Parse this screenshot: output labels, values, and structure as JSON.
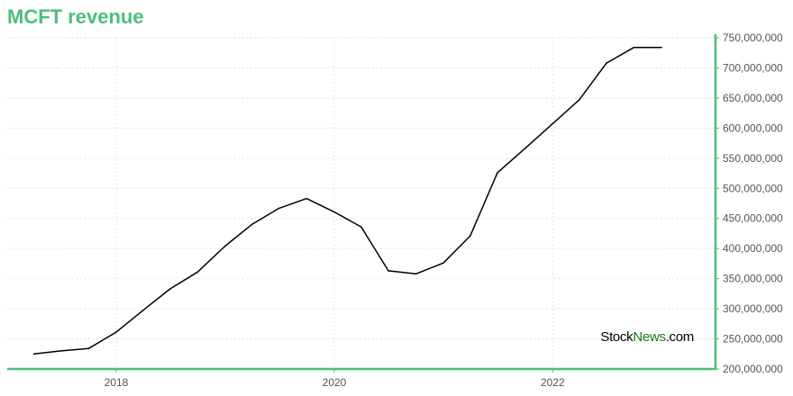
{
  "chart_title": "MCFT revenue",
  "watermark": {
    "part_a": "Stock",
    "part_b": "News",
    "part_c": ".com"
  },
  "colors": {
    "accent": "#4cbe7f",
    "line": "#000000",
    "grid": "#c9e6d6"
  },
  "chart_data": {
    "type": "line",
    "title": "MCFT revenue",
    "xlabel": "",
    "ylabel": "",
    "x_range": [
      "2017-01-01",
      "2023-06-30"
    ],
    "ylim": [
      200000000,
      750000000
    ],
    "y_ticks": [
      200000000,
      250000000,
      300000000,
      350000000,
      400000000,
      450000000,
      500000000,
      550000000,
      600000000,
      650000000,
      700000000,
      750000000
    ],
    "y_tick_labels": [
      "200,000,000",
      "250,000,000",
      "300,000,000",
      "350,000,000",
      "400,000,000",
      "450,000,000",
      "500,000,000",
      "550,000,000",
      "600,000,000",
      "650,000,000",
      "700,000,000",
      "750,000,000"
    ],
    "x_ticks": [
      "2018-01-01",
      "2020-01-01",
      "2022-01-01"
    ],
    "x_tick_labels": [
      "2018",
      "2020",
      "2022"
    ],
    "grid": true,
    "series": [
      {
        "points": [
          [
            "2017-03-31",
            225000000
          ],
          [
            "2017-06-30",
            230000000
          ],
          [
            "2017-09-30",
            234000000
          ],
          [
            "2017-12-31",
            261000000
          ],
          [
            "2018-03-31",
            297000000
          ],
          [
            "2018-06-30",
            333000000
          ],
          [
            "2018-09-30",
            361000000
          ],
          [
            "2018-12-31",
            404000000
          ],
          [
            "2019-03-31",
            440000000
          ],
          [
            "2019-06-30",
            467000000
          ],
          [
            "2019-09-30",
            483000000
          ],
          [
            "2019-12-31",
            461000000
          ],
          [
            "2020-03-31",
            436000000
          ],
          [
            "2020-06-30",
            363000000
          ],
          [
            "2020-09-30",
            358000000
          ],
          [
            "2020-12-31",
            376000000
          ],
          [
            "2021-03-31",
            421000000
          ],
          [
            "2021-06-30",
            526000000
          ],
          [
            "2021-09-30",
            566000000
          ],
          [
            "2021-12-31",
            607000000
          ],
          [
            "2022-03-31",
            647000000
          ],
          [
            "2022-06-30",
            708000000
          ],
          [
            "2022-09-30",
            734000000
          ],
          [
            "2022-12-31",
            734000000
          ]
        ]
      }
    ]
  }
}
